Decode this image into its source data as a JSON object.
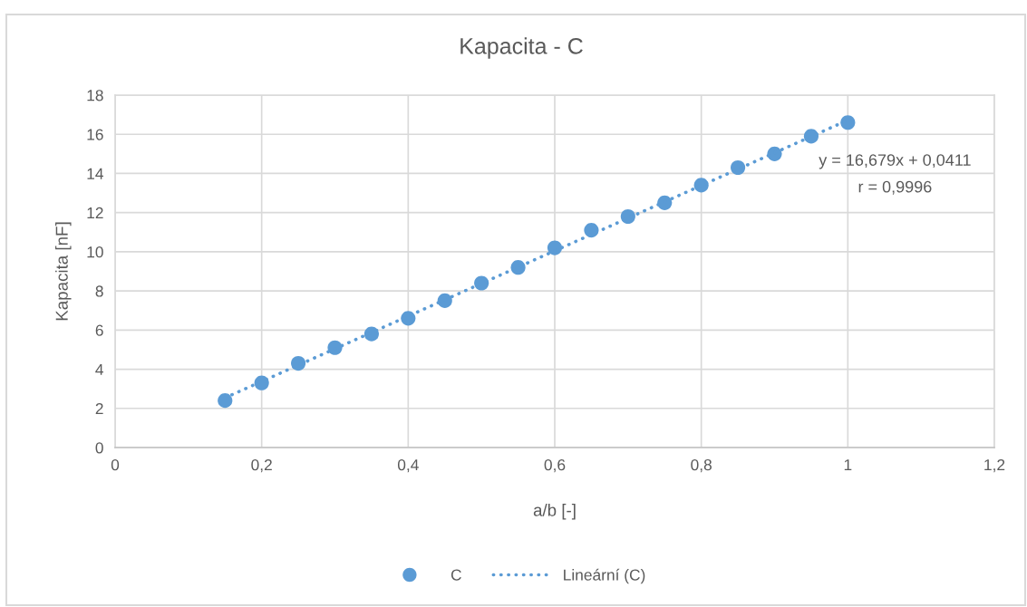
{
  "chart_data": {
    "type": "scatter",
    "title": "Kapacita - C",
    "xlabel": "a/b [-]",
    "ylabel": "Kapacita [nF]",
    "x": [
      0.15,
      0.2,
      0.25,
      0.3,
      0.35,
      0.4,
      0.45,
      0.5,
      0.55,
      0.6,
      0.65,
      0.7,
      0.75,
      0.8,
      0.85,
      0.9,
      0.95,
      1
    ],
    "series": [
      {
        "name": "C",
        "color": "#5b9bd5",
        "marker": "circle",
        "values": [
          2.4,
          3.3,
          4.3,
          5.1,
          5.8,
          6.6,
          7.5,
          8.4,
          9.2,
          10.2,
          11.1,
          11.8,
          12.5,
          13.4,
          14.3,
          15.0,
          15.9,
          16.6
        ]
      },
      {
        "name": "Lineární (C)",
        "type": "line",
        "color": "#5b9bd5",
        "marker": "none",
        "line_style": "dotted",
        "x": [
          0.15,
          1
        ],
        "values": [
          2.54,
          16.72
        ]
      }
    ],
    "xlim": [
      0,
      1.2
    ],
    "xticks": [
      0,
      {
        "value": 0.2,
        "label": "0,2"
      },
      {
        "value": 0.4,
        "label": "0,4"
      },
      {
        "value": 0.6,
        "label": "0,6"
      },
      {
        "value": 0.8,
        "label": "0,8"
      },
      1,
      {
        "value": 1.2,
        "label": "1,2"
      }
    ],
    "ylim": [
      0,
      18
    ],
    "yticks": [
      0,
      2,
      4,
      6,
      8,
      10,
      12,
      14,
      16,
      18
    ],
    "grid": true,
    "legend": "bottom",
    "annotations": [
      "y = 16,679x + 0,0411",
      "r = 0,9996"
    ]
  }
}
